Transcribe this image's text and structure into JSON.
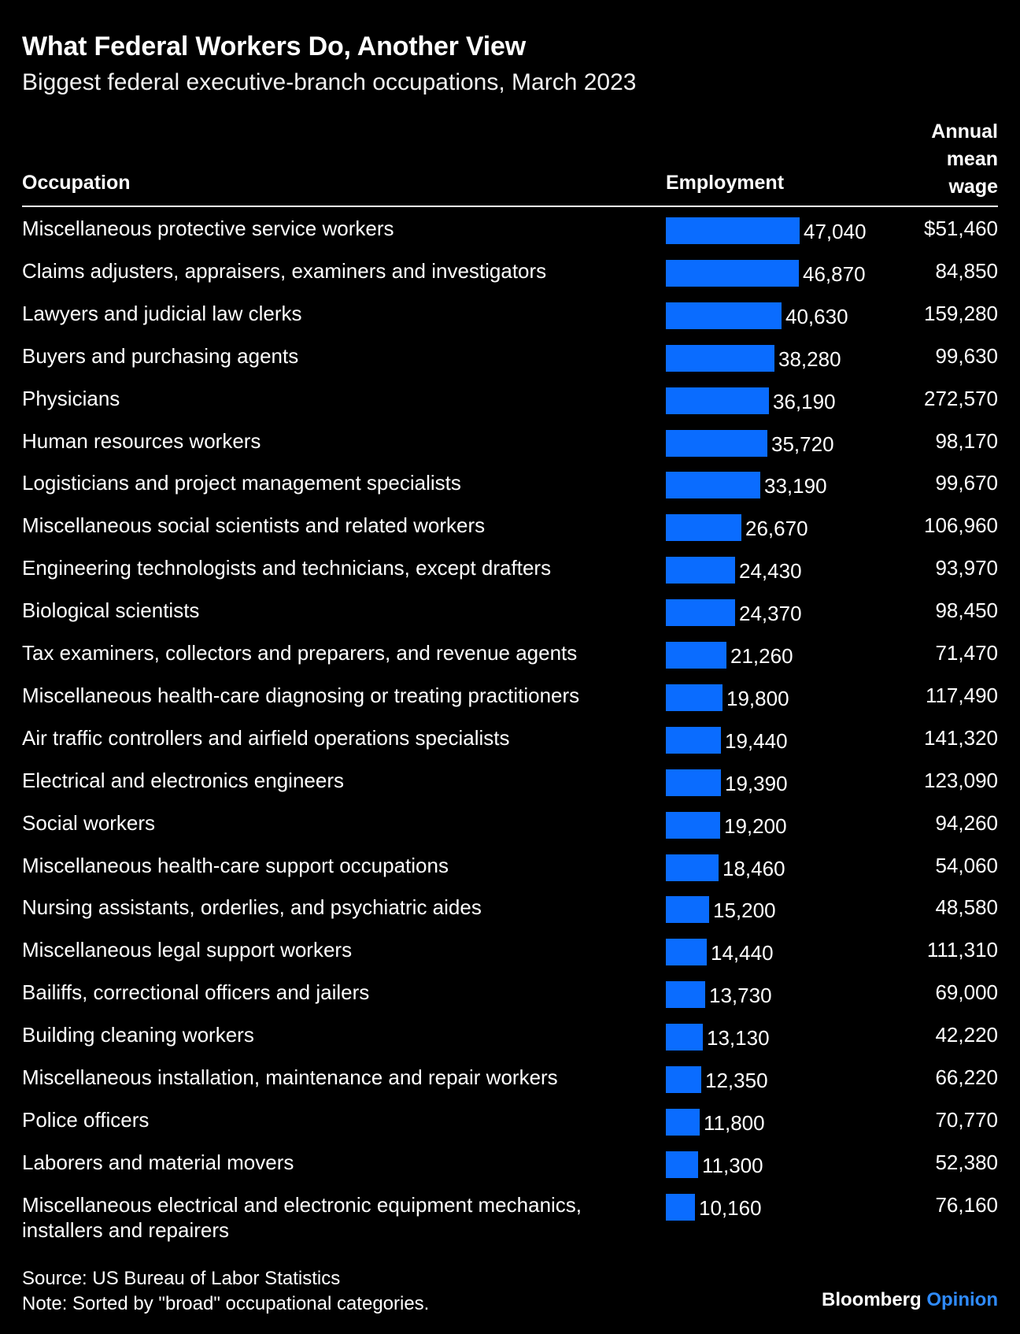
{
  "header": {
    "title": "What Federal Workers Do, Another View",
    "subtitle": "Biggest federal executive-branch occupations, March 2023"
  },
  "columns": {
    "occupation": "Occupation",
    "employment": "Employment",
    "wage_line1": "Annual",
    "wage_line2": "mean",
    "wage_line3": "wage"
  },
  "chart_data": {
    "type": "bar",
    "orientation": "horizontal",
    "title": "What Federal Workers Do, Another View",
    "subtitle": "Biggest federal executive-branch occupations, March 2023",
    "xlim": [
      0,
      47040
    ],
    "categories": [
      "Miscellaneous protective service workers",
      "Claims adjusters, appraisers, examiners and investigators",
      "Lawyers and judicial law clerks",
      "Buyers and purchasing agents",
      "Physicians",
      "Human resources workers",
      "Logisticians and project management specialists",
      "Miscellaneous social scientists and related workers",
      "Engineering technologists and technicians, except drafters",
      "Biological scientists",
      "Tax examiners, collectors and preparers, and revenue agents",
      "Miscellaneous health-care diagnosing or treating practitioners",
      "Air traffic controllers and airfield operations specialists",
      "Electrical and electronics engineers",
      "Social workers",
      "Miscellaneous health-care support occupations",
      "Nursing assistants, orderlies, and psychiatric aides",
      "Miscellaneous legal support workers",
      "Bailiffs, correctional officers and jailers",
      "Building cleaning workers",
      "Miscellaneous installation, maintenance and repair workers",
      "Police officers",
      "Laborers and material movers",
      "Miscellaneous electrical and electronic equipment mechanics, installers and repairers"
    ],
    "series": [
      {
        "name": "Employment",
        "values": [
          47040,
          46870,
          40630,
          38280,
          36190,
          35720,
          33190,
          26670,
          24430,
          24370,
          21260,
          19800,
          19440,
          19390,
          19200,
          18460,
          15200,
          14440,
          13730,
          13130,
          12350,
          11800,
          11300,
          10160
        ],
        "labels": [
          "47,040",
          "46,870",
          "40,630",
          "38,280",
          "36,190",
          "35,720",
          "33,190",
          "26,670",
          "24,430",
          "24,370",
          "21,260",
          "19,800",
          "19,440",
          "19,390",
          "19,200",
          "18,460",
          "15,200",
          "14,440",
          "13,730",
          "13,130",
          "12,350",
          "11,800",
          "11,300",
          "10,160"
        ]
      },
      {
        "name": "Annual mean wage",
        "values": [
          51460,
          84850,
          159280,
          99630,
          272570,
          98170,
          99670,
          106960,
          93970,
          98450,
          71470,
          117490,
          141320,
          123090,
          94260,
          54060,
          48580,
          111310,
          69000,
          42220,
          66220,
          70770,
          52380,
          76160
        ],
        "labels": [
          "$51,460",
          "84,850",
          "159,280",
          "99,630",
          "272,570",
          "98,170",
          "99,670",
          "106,960",
          "93,970",
          "98,450",
          "71,470",
          "117,490",
          "141,320",
          "123,090",
          "94,260",
          "54,060",
          "48,580",
          "111,310",
          "69,000",
          "42,220",
          "66,220",
          "70,770",
          "52,380",
          "76,160"
        ]
      }
    ],
    "bar_color": "#0a6cff"
  },
  "footer": {
    "source": "Source: US Bureau of Labor Statistics",
    "note": "Note: Sorted by \"broad\" occupational categories.",
    "brand_main": "Bloomberg",
    "brand_accent": "Opinion"
  }
}
